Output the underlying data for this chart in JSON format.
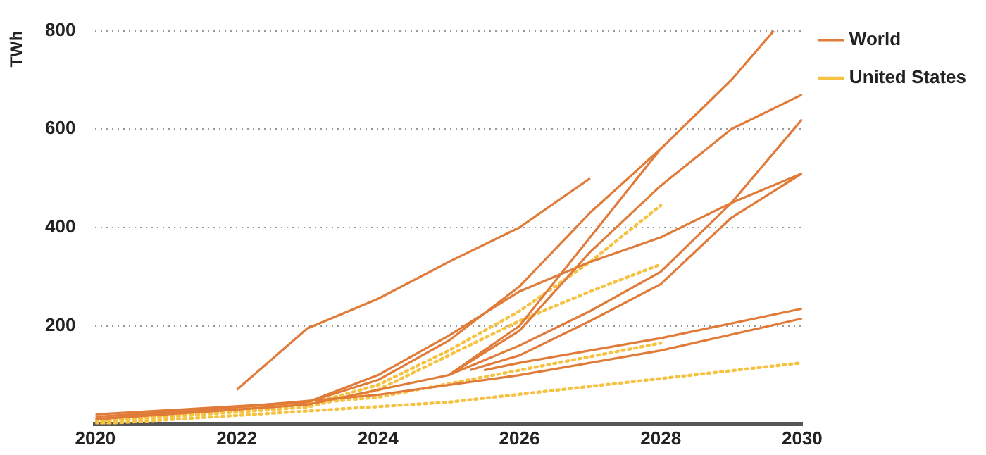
{
  "chart_data": {
    "type": "line",
    "ylabel": "TWh",
    "xlim": [
      2020,
      2030
    ],
    "xticks": [
      2020,
      2022,
      2024,
      2026,
      2028,
      2030
    ],
    "ylim": [
      0,
      800
    ],
    "yticks": [
      200,
      400,
      600,
      800
    ],
    "grid": "y",
    "legend": "top right",
    "marker": "none",
    "series": [
      {
        "name": "World",
        "color": "#e07b39",
        "line_style": "solid",
        "x": [
          2022,
          2023,
          2024,
          2025,
          2026,
          2027
        ],
        "values": [
          70,
          195,
          255,
          330,
          400,
          500
        ]
      },
      {
        "color": "#e07b39",
        "line_style": "solid",
        "x": [
          2020,
          2023,
          2024,
          2025,
          2026,
          2027,
          2028,
          2029,
          2029.6
        ],
        "values": [
          15,
          45,
          90,
          170,
          280,
          430,
          560,
          700,
          800
        ]
      },
      {
        "color": "#e07b39",
        "line_style": "solid",
        "x": [
          2020,
          2023,
          2025,
          2026,
          2027,
          2028
        ],
        "values": [
          10,
          40,
          100,
          200,
          380,
          560
        ]
      },
      {
        "color": "#e07b39",
        "line_style": "solid",
        "x": [
          2025,
          2026,
          2027,
          2028,
          2029,
          2030
        ],
        "values": [
          100,
          190,
          350,
          485,
          600,
          670
        ]
      },
      {
        "color": "#e07b39",
        "line_style": "solid",
        "x": [
          2025,
          2026,
          2027,
          2028,
          2029,
          2030
        ],
        "values": [
          100,
          160,
          230,
          310,
          450,
          620
        ]
      },
      {
        "color": "#e07b39",
        "line_style": "solid",
        "x": [
          2025.3,
          2026,
          2027,
          2028,
          2029,
          2030
        ],
        "values": [
          110,
          140,
          210,
          285,
          420,
          510
        ]
      },
      {
        "color": "#e07b39",
        "line_style": "solid",
        "x": [
          2020,
          2023,
          2024,
          2025,
          2026,
          2027,
          2028,
          2029,
          2030
        ],
        "values": [
          20,
          45,
          100,
          180,
          270,
          330,
          380,
          450,
          510
        ]
      },
      {
        "color": "#e07b39",
        "line_style": "solid",
        "x": [
          2025.5,
          2026,
          2028,
          2030
        ],
        "values": [
          110,
          125,
          175,
          235
        ]
      },
      {
        "color": "#e07b39",
        "line_style": "solid",
        "x": [
          2020,
          2024,
          2026,
          2028,
          2030
        ],
        "values": [
          10,
          60,
          100,
          150,
          215
        ]
      },
      {
        "name": "United States",
        "color": "#f5c242",
        "line_style": "dotted",
        "x": [
          2020,
          2023,
          2024,
          2025,
          2026,
          2027,
          2028
        ],
        "values": [
          5,
          40,
          80,
          150,
          230,
          330,
          445
        ]
      },
      {
        "color": "#f5c242",
        "line_style": "dotted",
        "x": [
          2020,
          2023,
          2024,
          2025,
          2026,
          2027,
          2028
        ],
        "values": [
          5,
          35,
          70,
          140,
          210,
          270,
          325
        ]
      },
      {
        "color": "#f5c242",
        "line_style": "dotted",
        "x": [
          2020,
          2024,
          2026,
          2028
        ],
        "values": [
          5,
          55,
          110,
          165
        ]
      },
      {
        "color": "#f5c242",
        "line_style": "dotted",
        "x": [
          2020,
          2025,
          2030
        ],
        "values": [
          0,
          45,
          125
        ]
      }
    ]
  }
}
